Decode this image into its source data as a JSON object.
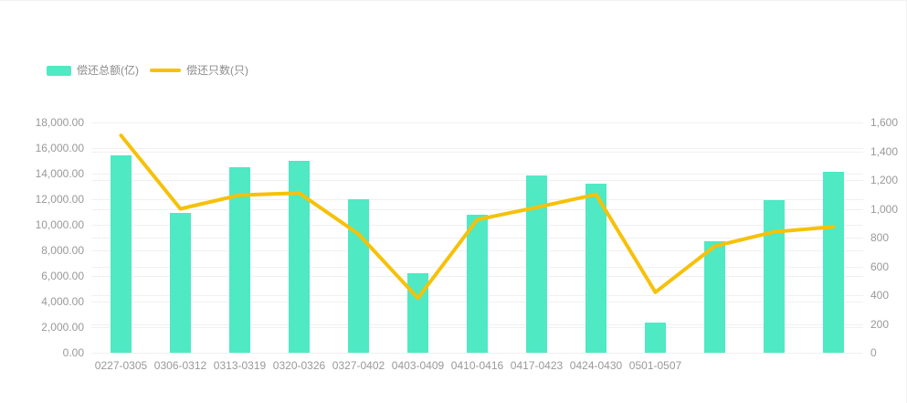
{
  "legend": {
    "items": [
      {
        "label": "偿还总额(亿)",
        "marker": "bar-swatch",
        "color": "#4FE9C4"
      },
      {
        "label": "偿还只数(只)",
        "marker": "line-swatch",
        "color": "#F6C109"
      }
    ]
  },
  "colors": {
    "bar": "#4FE9C4",
    "line": "#F6C109",
    "axis_text": "#999999",
    "legend_text": "#8c8c8c",
    "grid_line": "#f0f0f0",
    "background": "#ffffff"
  },
  "chart_data": {
    "type": "bar+line dual-axis",
    "title": "",
    "legend_position": "top-left",
    "grid": true,
    "categories": [
      "0227-0305",
      "0306-0312",
      "0313-0319",
      "0320-0326",
      "0327-0402",
      "0403-0409",
      "0410-0416",
      "0417-0423",
      "0424-0430",
      "0501-0507",
      "",
      "",
      ""
    ],
    "series": [
      {
        "name": "偿还总额(亿)",
        "type": "bar",
        "axis": "left",
        "values": [
          15400,
          10950,
          14500,
          15000,
          11980,
          6200,
          10760,
          13850,
          13200,
          2380,
          8740,
          11950,
          14160
        ]
      },
      {
        "name": "偿还只数(只)",
        "type": "line",
        "axis": "right",
        "values": [
          1510,
          1000,
          1095,
          1110,
          825,
          380,
          925,
          1010,
          1100,
          420,
          740,
          840,
          875
        ]
      }
    ],
    "left_axis": {
      "min": 0,
      "max": 18000,
      "step": 2000,
      "tick_labels": [
        "0.00",
        "2,000.00",
        "4,000.00",
        "6,000.00",
        "8,000.00",
        "10,000.00",
        "12,000.00",
        "14,000.00",
        "16,000.00",
        "18,000.00"
      ]
    },
    "right_axis": {
      "min": 0,
      "max": 1600,
      "step": 200,
      "tick_labels": [
        "0",
        "200",
        "400",
        "600",
        "800",
        "1,000",
        "1,200",
        "1,400",
        "1,600"
      ]
    }
  }
}
